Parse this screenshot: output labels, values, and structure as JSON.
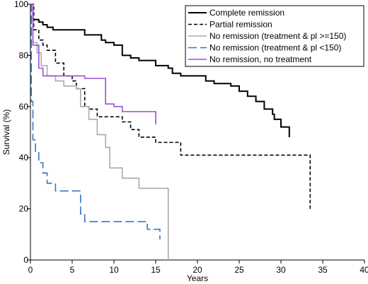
{
  "chart_data": {
    "type": "line",
    "title": "",
    "xlabel": "Years",
    "ylabel": "Survival (%)",
    "xlim": [
      0,
      40
    ],
    "ylim": [
      0,
      100
    ],
    "xticks": [
      "0",
      "5",
      "10",
      "15",
      "20",
      "25",
      "30",
      "35",
      "40"
    ],
    "yticks": [
      "0",
      "20",
      "40",
      "60",
      "80",
      "100"
    ],
    "grid": false,
    "legend_position": "top-right",
    "step": true,
    "series": [
      {
        "name": "Complete remission",
        "color": "#000000",
        "dash": "solid",
        "points": [
          [
            0,
            100
          ],
          [
            0.3,
            94
          ],
          [
            1,
            93
          ],
          [
            1.5,
            92
          ],
          [
            2,
            91
          ],
          [
            2.7,
            90
          ],
          [
            5,
            90
          ],
          [
            6.5,
            88
          ],
          [
            8.5,
            86
          ],
          [
            9,
            85
          ],
          [
            10,
            84
          ],
          [
            11,
            80
          ],
          [
            12,
            79
          ],
          [
            13,
            78
          ],
          [
            15,
            76
          ],
          [
            16.5,
            75
          ],
          [
            17,
            73
          ],
          [
            18,
            72
          ],
          [
            20,
            72
          ],
          [
            21,
            70
          ],
          [
            22,
            69
          ],
          [
            24,
            68
          ],
          [
            25,
            66
          ],
          [
            26,
            64
          ],
          [
            27,
            62
          ],
          [
            28,
            59
          ],
          [
            29,
            57
          ],
          [
            29.2,
            55
          ],
          [
            30,
            52
          ],
          [
            31,
            48
          ]
        ]
      },
      {
        "name": "Partial remission",
        "color": "#000000",
        "dash": "dashed",
        "points": [
          [
            0,
            100
          ],
          [
            0.4,
            90
          ],
          [
            1,
            86
          ],
          [
            1.5,
            84
          ],
          [
            2,
            82
          ],
          [
            3,
            77
          ],
          [
            4,
            72
          ],
          [
            5,
            70
          ],
          [
            5.5,
            67
          ],
          [
            6.5,
            60
          ],
          [
            7,
            59
          ],
          [
            8,
            56
          ],
          [
            10,
            56
          ],
          [
            11,
            54
          ],
          [
            12,
            51
          ],
          [
            13,
            48
          ],
          [
            15,
            46
          ],
          [
            18,
            41
          ],
          [
            33.5,
            41
          ],
          [
            33.5,
            20
          ]
        ]
      },
      {
        "name": "No remission (treatment & pl >=150)",
        "color": "#aaaaaa",
        "dash": "solid",
        "points": [
          [
            0,
            100
          ],
          [
            0.3,
            85
          ],
          [
            0.8,
            81
          ],
          [
            1.3,
            76
          ],
          [
            2,
            72
          ],
          [
            3,
            70
          ],
          [
            4,
            68
          ],
          [
            5.5,
            67
          ],
          [
            6,
            60
          ],
          [
            7,
            55
          ],
          [
            8,
            49
          ],
          [
            9,
            44
          ],
          [
            9.5,
            36
          ],
          [
            11,
            32
          ],
          [
            13,
            28
          ],
          [
            16.5,
            28
          ],
          [
            16.5,
            0
          ]
        ]
      },
      {
        "name": "No remission (treatment & pl <150)",
        "color": "#3874c2",
        "dash": "longdash",
        "points": [
          [
            0,
            100
          ],
          [
            0.1,
            62
          ],
          [
            0.3,
            47
          ],
          [
            0.6,
            42
          ],
          [
            1,
            38
          ],
          [
            1.5,
            34
          ],
          [
            2,
            30
          ],
          [
            3,
            27
          ],
          [
            5.5,
            27
          ],
          [
            6,
            18
          ],
          [
            6.5,
            15
          ],
          [
            11,
            15
          ],
          [
            13,
            15
          ],
          [
            14,
            12
          ],
          [
            15,
            12
          ],
          [
            15.5,
            8
          ]
        ]
      },
      {
        "name": "No remission, no treatment",
        "color": "#9b4fd6",
        "dash": "solid",
        "points": [
          [
            0,
            100
          ],
          [
            0.3,
            84
          ],
          [
            1,
            75
          ],
          [
            1.5,
            72
          ],
          [
            6,
            72
          ],
          [
            6.5,
            71
          ],
          [
            8.5,
            71
          ],
          [
            9,
            61
          ],
          [
            10,
            60
          ],
          [
            11,
            58
          ],
          [
            15,
            58
          ],
          [
            15,
            53
          ]
        ]
      }
    ]
  }
}
